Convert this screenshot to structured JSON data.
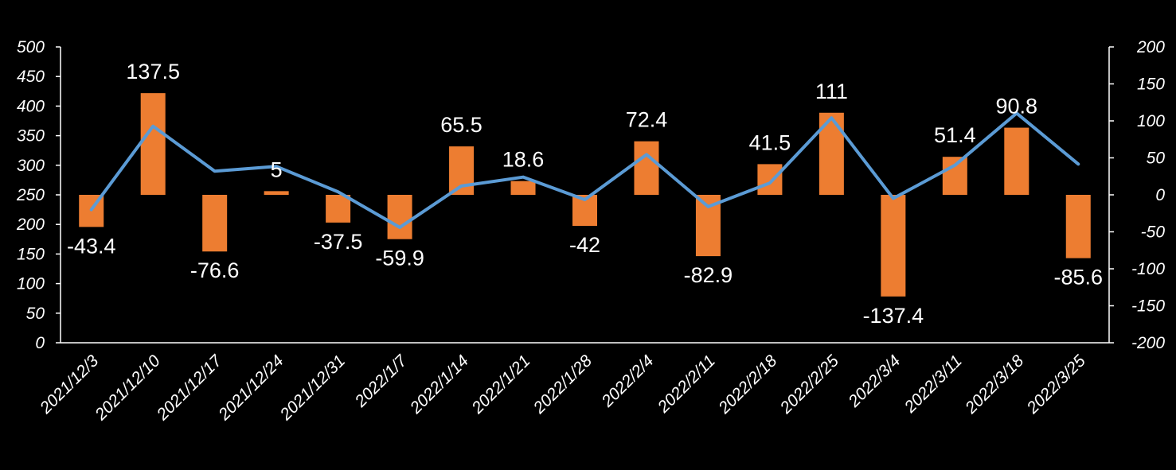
{
  "chart_data": {
    "type": "bar+line",
    "title": "",
    "xlabel": "",
    "ylabel": "",
    "categories": [
      "2021/12/3",
      "2021/12/10",
      "2021/12/17",
      "2021/12/24",
      "2021/12/31",
      "2022/1/7",
      "2022/1/14",
      "2022/1/21",
      "2022/1/28",
      "2022/2/4",
      "2022/2/11",
      "2022/2/18",
      "2022/2/25",
      "2022/3/4",
      "2022/3/11",
      "2022/3/18",
      "2022/3/25"
    ],
    "series": [
      {
        "name": "bar",
        "type": "bar",
        "axis": "right",
        "color": "#ED7D31",
        "values": [
          -43.4,
          137.5,
          -76.6,
          5,
          -37.5,
          -59.9,
          65.5,
          18.6,
          -42,
          72.4,
          -82.9,
          41.5,
          111,
          -137.4,
          51.4,
          90.8,
          -85.6
        ],
        "labels": [
          "-43.4",
          "137.5",
          "-76.6",
          "5",
          "-37.5",
          "-59.9",
          "65.5",
          "18.6",
          "-42",
          "72.4",
          "-82.9",
          "41.5",
          "111",
          "-137.4",
          "51.4",
          "90.8",
          "-85.6"
        ]
      },
      {
        "name": "line",
        "type": "line",
        "axis": "left",
        "color": "#5B9BD5",
        "values": [
          225,
          366,
          290,
          298,
          255,
          195,
          265,
          280,
          242,
          318,
          230,
          270,
          380,
          244,
          300,
          388,
          302
        ]
      }
    ],
    "y_left": {
      "min": 0,
      "max": 500,
      "ticks": [
        "0",
        "50",
        "100",
        "150",
        "200",
        "250",
        "300",
        "350",
        "400",
        "450",
        "500"
      ]
    },
    "y_right": {
      "min": -200,
      "max": 200,
      "ticks": [
        "-200",
        "-150",
        "-100",
        "-50",
        "0",
        "50",
        "100",
        "150",
        "200"
      ]
    },
    "grid": false,
    "legend": "none"
  }
}
